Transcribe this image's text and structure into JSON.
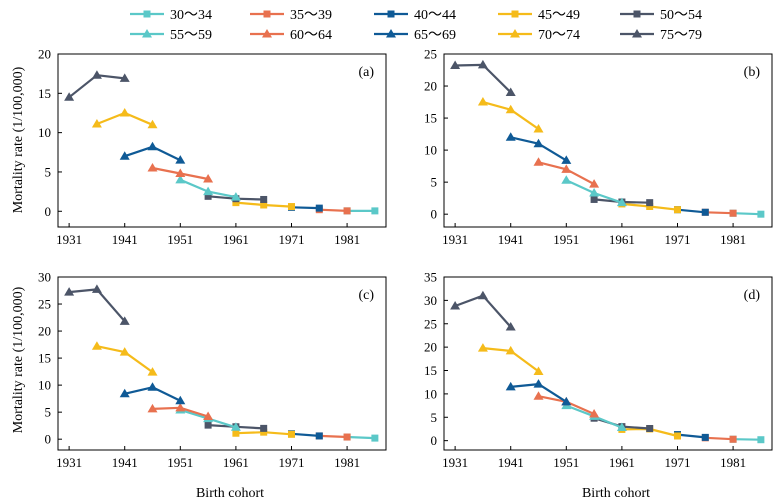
{
  "figure": {
    "xlabel": "Birth cohort",
    "ylabel": "Mortality rate (1/100,000)"
  },
  "legend": [
    {
      "name": "30～34",
      "color": "#5bc8c8",
      "marker": "square"
    },
    {
      "name": "35～39",
      "color": "#e8714f",
      "marker": "square"
    },
    {
      "name": "40～44",
      "color": "#0f5a96",
      "marker": "square"
    },
    {
      "name": "45～49",
      "color": "#f5bb1a",
      "marker": "square"
    },
    {
      "name": "50～54",
      "color": "#4c5568",
      "marker": "square"
    },
    {
      "name": "55～59",
      "color": "#5bc8c8",
      "marker": "triangle"
    },
    {
      "name": "60～64",
      "color": "#e8714f",
      "marker": "triangle"
    },
    {
      "name": "65～69",
      "color": "#0f5a96",
      "marker": "triangle"
    },
    {
      "name": "70～74",
      "color": "#f5bb1a",
      "marker": "triangle"
    },
    {
      "name": "75～79",
      "color": "#4c5568",
      "marker": "triangle"
    }
  ],
  "chart_data": [
    {
      "type": "line",
      "label": "(a)",
      "xlabel": "",
      "ylabel": "Mortality rate (1/100,000)",
      "xlim": [
        1929,
        1988
      ],
      "ylim": [
        -2,
        20
      ],
      "xticks": [
        1931,
        1941,
        1951,
        1961,
        1971,
        1981
      ],
      "yticks": [
        0,
        5,
        10,
        15,
        20
      ],
      "series": [
        {
          "name": "30～34",
          "x": [
            1981,
            1986
          ],
          "y": [
            0.05,
            0.05
          ]
        },
        {
          "name": "35～39",
          "x": [
            1976,
            1981
          ],
          "y": [
            0.2,
            0.05
          ]
        },
        {
          "name": "40～44",
          "x": [
            1971,
            1976
          ],
          "y": [
            0.5,
            0.4
          ]
        },
        {
          "name": "45～49",
          "x": [
            1961,
            1966,
            1971
          ],
          "y": [
            1.1,
            0.8,
            0.6
          ]
        },
        {
          "name": "50～54",
          "x": [
            1956,
            1961,
            1966
          ],
          "y": [
            1.9,
            1.6,
            1.5
          ]
        },
        {
          "name": "55～59",
          "x": [
            1951,
            1956,
            1961
          ],
          "y": [
            4.0,
            2.5,
            1.8
          ]
        },
        {
          "name": "60～64",
          "x": [
            1946,
            1951,
            1956
          ],
          "y": [
            5.5,
            4.8,
            4.1
          ]
        },
        {
          "name": "65～69",
          "x": [
            1941,
            1946,
            1951
          ],
          "y": [
            7.0,
            8.2,
            6.5
          ]
        },
        {
          "name": "70～74",
          "x": [
            1936,
            1941,
            1946
          ],
          "y": [
            11.1,
            12.5,
            11.0
          ]
        },
        {
          "name": "75～79",
          "x": [
            1931,
            1936,
            1941
          ],
          "y": [
            14.5,
            17.3,
            16.9
          ]
        }
      ]
    },
    {
      "type": "line",
      "label": "(b)",
      "xlabel": "",
      "ylabel": "",
      "xlim": [
        1929,
        1988
      ],
      "ylim": [
        -2,
        25
      ],
      "xticks": [
        1931,
        1941,
        1951,
        1961,
        1971,
        1981
      ],
      "yticks": [
        0,
        5,
        10,
        15,
        20,
        25
      ],
      "series": [
        {
          "name": "30～34",
          "x": [
            1981,
            1986
          ],
          "y": [
            0.15,
            0.0
          ]
        },
        {
          "name": "35～39",
          "x": [
            1976,
            1981
          ],
          "y": [
            0.3,
            0.15
          ]
        },
        {
          "name": "40～44",
          "x": [
            1971,
            1976
          ],
          "y": [
            0.7,
            0.3
          ]
        },
        {
          "name": "45～49",
          "x": [
            1961,
            1966,
            1971
          ],
          "y": [
            1.6,
            1.2,
            0.7
          ]
        },
        {
          "name": "50～54",
          "x": [
            1956,
            1961,
            1966
          ],
          "y": [
            2.3,
            1.9,
            1.8
          ]
        },
        {
          "name": "55～59",
          "x": [
            1951,
            1956,
            1961
          ],
          "y": [
            5.3,
            3.3,
            1.8
          ]
        },
        {
          "name": "60～64",
          "x": [
            1946,
            1951,
            1956
          ],
          "y": [
            8.1,
            7.0,
            4.7
          ]
        },
        {
          "name": "65～69",
          "x": [
            1941,
            1946,
            1951
          ],
          "y": [
            12.0,
            11.0,
            8.4
          ]
        },
        {
          "name": "70～74",
          "x": [
            1936,
            1941,
            1946
          ],
          "y": [
            17.5,
            16.3,
            13.3
          ]
        },
        {
          "name": "75～79",
          "x": [
            1931,
            1936,
            1941
          ],
          "y": [
            23.2,
            23.3,
            19.0
          ]
        }
      ]
    },
    {
      "type": "line",
      "label": "(c)",
      "xlabel": "Birth cohort",
      "ylabel": "Mortality rate (1/100,000)",
      "xlim": [
        1929,
        1988
      ],
      "ylim": [
        -2,
        30
      ],
      "xticks": [
        1931,
        1941,
        1951,
        1961,
        1971,
        1981
      ],
      "yticks": [
        0,
        5,
        10,
        15,
        20,
        25,
        30
      ],
      "series": [
        {
          "name": "30～34",
          "x": [
            1981,
            1986
          ],
          "y": [
            0.4,
            0.2
          ]
        },
        {
          "name": "35～39",
          "x": [
            1976,
            1981
          ],
          "y": [
            0.6,
            0.4
          ]
        },
        {
          "name": "40～44",
          "x": [
            1971,
            1976
          ],
          "y": [
            1.0,
            0.6
          ]
        },
        {
          "name": "45～49",
          "x": [
            1961,
            1966,
            1971
          ],
          "y": [
            1.1,
            1.3,
            0.9
          ]
        },
        {
          "name": "50～54",
          "x": [
            1956,
            1961,
            1966
          ],
          "y": [
            2.6,
            2.3,
            2.0
          ]
        },
        {
          "name": "55～59",
          "x": [
            1951,
            1956,
            1961
          ],
          "y": [
            5.4,
            3.8,
            2.2
          ]
        },
        {
          "name": "60～64",
          "x": [
            1946,
            1951,
            1956
          ],
          "y": [
            5.6,
            5.8,
            4.2
          ]
        },
        {
          "name": "65～69",
          "x": [
            1941,
            1946,
            1951
          ],
          "y": [
            8.4,
            9.6,
            7.1
          ]
        },
        {
          "name": "70～74",
          "x": [
            1936,
            1941,
            1946
          ],
          "y": [
            17.2,
            16.1,
            12.4
          ]
        },
        {
          "name": "75～79",
          "x": [
            1931,
            1936,
            1941
          ],
          "y": [
            27.2,
            27.7,
            21.8
          ]
        }
      ]
    },
    {
      "type": "line",
      "label": "(d)",
      "xlabel": "Birth cohort",
      "ylabel": "",
      "xlim": [
        1929,
        1988
      ],
      "ylim": [
        -2,
        35
      ],
      "xticks": [
        1931,
        1941,
        1951,
        1961,
        1971,
        1981
      ],
      "yticks": [
        0,
        5,
        10,
        15,
        20,
        25,
        30,
        35
      ],
      "series": [
        {
          "name": "30～34",
          "x": [
            1981,
            1986
          ],
          "y": [
            0.3,
            0.2
          ]
        },
        {
          "name": "35～39",
          "x": [
            1976,
            1981
          ],
          "y": [
            0.6,
            0.3
          ]
        },
        {
          "name": "40～44",
          "x": [
            1971,
            1976
          ],
          "y": [
            1.3,
            0.7
          ]
        },
        {
          "name": "45～49",
          "x": [
            1961,
            1966,
            1971
          ],
          "y": [
            2.4,
            2.5,
            1.0
          ]
        },
        {
          "name": "50～54",
          "x": [
            1956,
            1961,
            1966
          ],
          "y": [
            4.8,
            3.0,
            2.6
          ]
        },
        {
          "name": "55～59",
          "x": [
            1951,
            1956,
            1961
          ],
          "y": [
            7.5,
            5.2,
            2.8
          ]
        },
        {
          "name": "60～64",
          "x": [
            1946,
            1951,
            1956
          ],
          "y": [
            9.5,
            8.3,
            5.7
          ]
        },
        {
          "name": "65～69",
          "x": [
            1941,
            1946,
            1951
          ],
          "y": [
            11.5,
            12.1,
            8.3
          ]
        },
        {
          "name": "70～74",
          "x": [
            1936,
            1941,
            1946
          ],
          "y": [
            19.8,
            19.2,
            14.8
          ]
        },
        {
          "name": "75～79",
          "x": [
            1931,
            1936,
            1941
          ],
          "y": [
            28.8,
            31.0,
            24.3
          ]
        }
      ]
    }
  ]
}
